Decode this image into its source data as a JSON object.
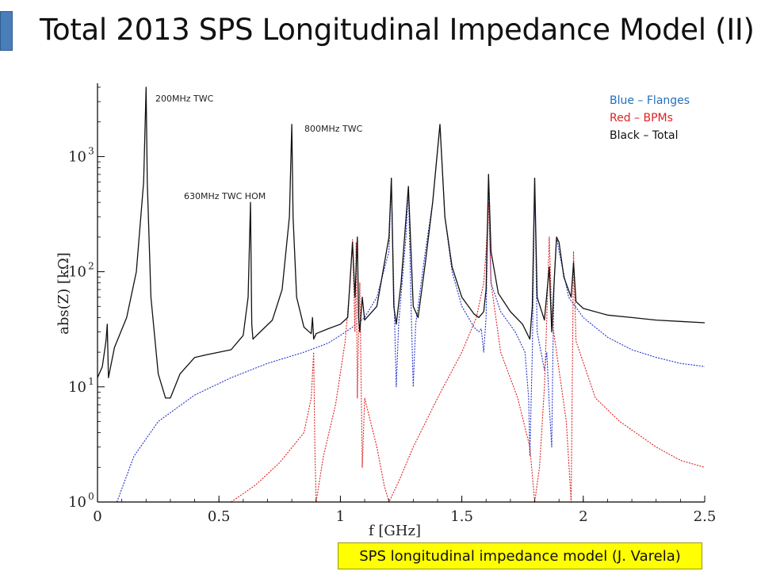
{
  "slide": {
    "title": "Total 2013 SPS Longitudinal Impedance Model (II)",
    "caption": "SPS longitudinal impedance model (J. Varela)"
  },
  "chart_data": {
    "type": "line",
    "xlabel": "f [GHz]",
    "ylabel": "abs(Z) [kΩ]",
    "xlim": [
      0,
      2.5
    ],
    "ylim": [
      1,
      4000
    ],
    "y_scale": "log",
    "x_ticks": [
      "0",
      "0.5",
      "1",
      "1.5",
      "2",
      "2.5"
    ],
    "y_ticks": [
      {
        "base": "10",
        "exp": "0",
        "value": 1
      },
      {
        "base": "10",
        "exp": "1",
        "value": 10
      },
      {
        "base": "10",
        "exp": "2",
        "value": 100
      },
      {
        "base": "10",
        "exp": "3",
        "value": 1000
      }
    ],
    "grid": false,
    "legend": [
      {
        "label": "Blue – Flanges",
        "color": "#1f6fbf"
      },
      {
        "label": "Red – BPMs",
        "color": "#dd2222"
      },
      {
        "label": "Black – Total",
        "color": "#111111"
      }
    ],
    "annotations": [
      {
        "text": "200MHz TWC",
        "x": 0.2
      },
      {
        "text": "630MHz TWC HOM",
        "x": 0.63
      },
      {
        "text": "800MHz TWC",
        "x": 0.8
      }
    ],
    "series": [
      {
        "name": "Total",
        "color": "#111111",
        "points": [
          [
            0.0,
            12
          ],
          [
            0.02,
            15
          ],
          [
            0.035,
            25
          ],
          [
            0.04,
            35
          ],
          [
            0.045,
            12
          ],
          [
            0.07,
            22
          ],
          [
            0.12,
            40
          ],
          [
            0.16,
            100
          ],
          [
            0.19,
            600
          ],
          [
            0.2,
            4000
          ],
          [
            0.205,
            600
          ],
          [
            0.22,
            60
          ],
          [
            0.25,
            13
          ],
          [
            0.28,
            8
          ],
          [
            0.3,
            8
          ],
          [
            0.34,
            13
          ],
          [
            0.4,
            18
          ],
          [
            0.45,
            19
          ],
          [
            0.5,
            20
          ],
          [
            0.55,
            21
          ],
          [
            0.6,
            28
          ],
          [
            0.62,
            60
          ],
          [
            0.63,
            400
          ],
          [
            0.635,
            35
          ],
          [
            0.64,
            26
          ],
          [
            0.67,
            30
          ],
          [
            0.72,
            38
          ],
          [
            0.76,
            70
          ],
          [
            0.79,
            300
          ],
          [
            0.8,
            1900
          ],
          [
            0.805,
            300
          ],
          [
            0.82,
            60
          ],
          [
            0.85,
            33
          ],
          [
            0.88,
            29
          ],
          [
            0.885,
            40
          ],
          [
            0.89,
            26
          ],
          [
            0.9,
            29
          ],
          [
            0.95,
            32
          ],
          [
            1.0,
            35
          ],
          [
            1.03,
            40
          ],
          [
            1.05,
            180
          ],
          [
            1.06,
            60
          ],
          [
            1.07,
            200
          ],
          [
            1.075,
            40
          ],
          [
            1.08,
            30
          ],
          [
            1.09,
            60
          ],
          [
            1.1,
            38
          ],
          [
            1.15,
            50
          ],
          [
            1.2,
            200
          ],
          [
            1.21,
            650
          ],
          [
            1.22,
            50
          ],
          [
            1.23,
            35
          ],
          [
            1.25,
            80
          ],
          [
            1.28,
            550
          ],
          [
            1.3,
            50
          ],
          [
            1.32,
            40
          ],
          [
            1.35,
            120
          ],
          [
            1.38,
            400
          ],
          [
            1.41,
            1900
          ],
          [
            1.43,
            300
          ],
          [
            1.46,
            110
          ],
          [
            1.5,
            60
          ],
          [
            1.55,
            43
          ],
          [
            1.57,
            40
          ],
          [
            1.59,
            45
          ],
          [
            1.6,
            70
          ],
          [
            1.61,
            700
          ],
          [
            1.62,
            150
          ],
          [
            1.65,
            65
          ],
          [
            1.7,
            45
          ],
          [
            1.75,
            35
          ],
          [
            1.78,
            26
          ],
          [
            1.79,
            50
          ],
          [
            1.8,
            650
          ],
          [
            1.81,
            60
          ],
          [
            1.84,
            38
          ],
          [
            1.86,
            110
          ],
          [
            1.87,
            30
          ],
          [
            1.88,
            80
          ],
          [
            1.89,
            200
          ],
          [
            1.9,
            180
          ],
          [
            1.92,
            90
          ],
          [
            1.95,
            60
          ],
          [
            1.96,
            120
          ],
          [
            1.97,
            55
          ],
          [
            2.0,
            48
          ],
          [
            2.1,
            42
          ],
          [
            2.2,
            40
          ],
          [
            2.3,
            38
          ],
          [
            2.4,
            37
          ],
          [
            2.5,
            36
          ]
        ]
      },
      {
        "name": "Flanges",
        "color": "#2233cc",
        "points": [
          [
            0.08,
            1
          ],
          [
            0.15,
            2.5
          ],
          [
            0.25,
            5
          ],
          [
            0.4,
            8.5
          ],
          [
            0.55,
            12
          ],
          [
            0.7,
            16
          ],
          [
            0.85,
            20
          ],
          [
            0.95,
            24
          ],
          [
            1.0,
            28
          ],
          [
            1.05,
            33
          ],
          [
            1.1,
            40
          ],
          [
            1.15,
            60
          ],
          [
            1.2,
            150
          ],
          [
            1.21,
            650
          ],
          [
            1.22,
            70
          ],
          [
            1.23,
            10
          ],
          [
            1.24,
            35
          ],
          [
            1.27,
            200
          ],
          [
            1.28,
            550
          ],
          [
            1.29,
            60
          ],
          [
            1.3,
            10
          ],
          [
            1.31,
            35
          ],
          [
            1.35,
            150
          ],
          [
            1.38,
            400
          ],
          [
            1.41,
            1900
          ],
          [
            1.43,
            300
          ],
          [
            1.46,
            100
          ],
          [
            1.5,
            50
          ],
          [
            1.55,
            33
          ],
          [
            1.57,
            30
          ],
          [
            1.58,
            32
          ],
          [
            1.59,
            20
          ],
          [
            1.6,
            40
          ],
          [
            1.61,
            700
          ],
          [
            1.62,
            80
          ],
          [
            1.66,
            45
          ],
          [
            1.72,
            30
          ],
          [
            1.76,
            20
          ],
          [
            1.775,
            8
          ],
          [
            1.78,
            2.5
          ],
          [
            1.79,
            20
          ],
          [
            1.8,
            650
          ],
          [
            1.81,
            30
          ],
          [
            1.84,
            14
          ],
          [
            1.85,
            20
          ],
          [
            1.86,
            7
          ],
          [
            1.87,
            3
          ],
          [
            1.875,
            20
          ],
          [
            1.88,
            80
          ],
          [
            1.89,
            200
          ],
          [
            1.9,
            150
          ],
          [
            1.94,
            60
          ],
          [
            2.0,
            40
          ],
          [
            2.1,
            27
          ],
          [
            2.2,
            21
          ],
          [
            2.3,
            18
          ],
          [
            2.4,
            16
          ],
          [
            2.5,
            15
          ]
        ]
      },
      {
        "name": "BPMs",
        "color": "#dd2222",
        "points": [
          [
            0.55,
            1
          ],
          [
            0.65,
            1.4
          ],
          [
            0.75,
            2.2
          ],
          [
            0.85,
            4
          ],
          [
            0.88,
            8
          ],
          [
            0.89,
            20
          ],
          [
            0.895,
            3
          ],
          [
            0.9,
            1
          ],
          [
            0.93,
            2.5
          ],
          [
            0.98,
            7
          ],
          [
            1.02,
            25
          ],
          [
            1.04,
            80
          ],
          [
            1.05,
            190
          ],
          [
            1.06,
            30
          ],
          [
            1.065,
            180
          ],
          [
            1.07,
            8
          ],
          [
            1.075,
            30
          ],
          [
            1.08,
            80
          ],
          [
            1.09,
            2
          ],
          [
            1.1,
            8
          ],
          [
            1.15,
            3
          ],
          [
            1.18,
            1.4
          ],
          [
            1.2,
            1
          ],
          [
            1.24,
            1.5
          ],
          [
            1.3,
            3
          ],
          [
            1.4,
            8
          ],
          [
            1.5,
            20
          ],
          [
            1.56,
            40
          ],
          [
            1.59,
            80
          ],
          [
            1.6,
            150
          ],
          [
            1.61,
            400
          ],
          [
            1.62,
            80
          ],
          [
            1.66,
            20
          ],
          [
            1.73,
            8
          ],
          [
            1.78,
            3
          ],
          [
            1.8,
            1
          ],
          [
            1.82,
            2
          ],
          [
            1.84,
            10
          ],
          [
            1.85,
            40
          ],
          [
            1.86,
            200
          ],
          [
            1.87,
            40
          ],
          [
            1.9,
            14
          ],
          [
            1.93,
            5
          ],
          [
            1.95,
            1
          ],
          [
            1.96,
            150
          ],
          [
            1.97,
            25
          ],
          [
            2.05,
            8
          ],
          [
            2.15,
            5
          ],
          [
            2.3,
            3
          ],
          [
            2.4,
            2.3
          ],
          [
            2.5,
            2
          ]
        ]
      }
    ]
  }
}
